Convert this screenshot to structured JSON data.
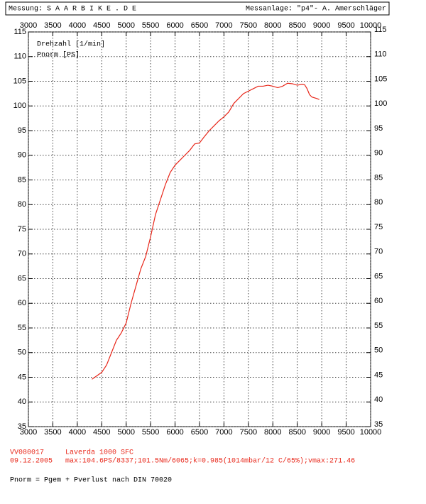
{
  "header": {
    "left": "Messung: S A A R B I K E . D E",
    "right": "Messanlage: \"p4\"- A. Amerschläger"
  },
  "chart_data": {
    "type": "line",
    "legend_lines": [
      "Drehzahl [1/min]",
      "Pnorm [PS]"
    ],
    "x": [
      4300,
      4500,
      4600,
      4700,
      4800,
      4900,
      5000,
      5100,
      5200,
      5300,
      5400,
      5500,
      5600,
      5700,
      5800,
      5900,
      6000,
      6100,
      6200,
      6300,
      6400,
      6500,
      6600,
      6700,
      6800,
      6900,
      7000,
      7100,
      7200,
      7300,
      7400,
      7500,
      7600,
      7700,
      7800,
      7900,
      8000,
      8100,
      8200,
      8300,
      8400,
      8500,
      8600,
      8650,
      8700,
      8750,
      8800,
      8900,
      8950
    ],
    "series": [
      {
        "name": "Pnorm",
        "color": "#e8271a",
        "values": [
          44.6,
          46,
          47.5,
          50,
          52.5,
          54,
          56,
          60,
          63.5,
          67,
          69.5,
          73.5,
          78,
          81,
          84,
          86.5,
          88,
          89,
          90,
          91,
          92.3,
          92.5,
          93.8,
          95,
          96,
          97,
          97.8,
          98.8,
          100.5,
          101.5,
          102.5,
          103,
          103.5,
          104,
          104,
          104.2,
          104,
          103.7,
          104,
          104.6,
          104.5,
          104.2,
          104.4,
          104.3,
          103.5,
          102.3,
          101.8,
          101.5,
          101.3
        ]
      }
    ],
    "xlim": [
      3000,
      10000
    ],
    "ylim": [
      35,
      115
    ],
    "xticks": [
      3000,
      3500,
      4000,
      4500,
      5000,
      5500,
      6000,
      6500,
      7000,
      7500,
      8000,
      8500,
      9000,
      9500,
      10000
    ],
    "yticks": [
      35,
      40,
      45,
      50,
      55,
      60,
      65,
      70,
      75,
      80,
      85,
      90,
      95,
      100,
      105,
      110,
      115
    ],
    "grid": true
  },
  "footer": {
    "id": "VV080017",
    "model": "Laverda 1000 SFC",
    "date": "09.12.2005",
    "stats": "max:104.6PS/8337;101.5Nm/6065;k=0.985(1014mbar/12 C/65%);vmax:271.46",
    "formula": "Pnorm = Pgem + Pverlust nach DIN 70020"
  }
}
